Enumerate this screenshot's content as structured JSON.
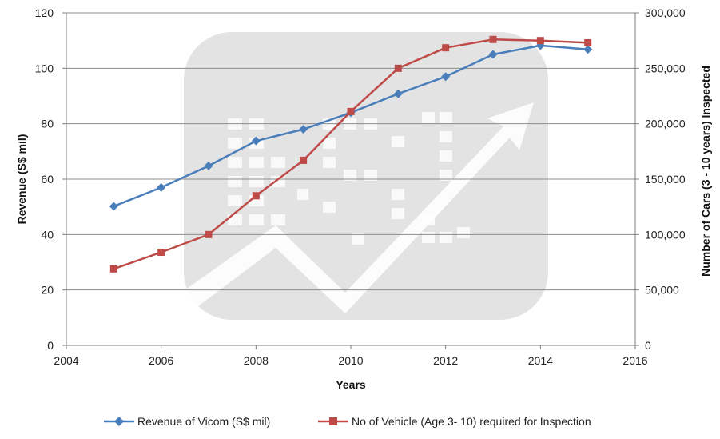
{
  "chart_data": {
    "type": "line",
    "xlabel": "Years",
    "ylabel_left": "Revenue (S$ mil)",
    "ylabel_right": "Number of Cars (3 - 10 years) Inspected",
    "xlim": [
      2004,
      2016
    ],
    "x_ticks": [
      "2004",
      "2006",
      "2008",
      "2010",
      "2012",
      "2014",
      "2016"
    ],
    "ylim_left": [
      0,
      120
    ],
    "y_ticks_left": [
      "0",
      "20",
      "40",
      "60",
      "80",
      "100",
      "120"
    ],
    "ylim_right": [
      0,
      300000
    ],
    "y_ticks_right": [
      "0",
      "50,000",
      "100,000",
      "150,000",
      "200,000",
      "250,000",
      "300,000"
    ],
    "grid": "horizontal",
    "legend_position": "bottom",
    "series": [
      {
        "name": "Revenue of Vicom (S$ mil)",
        "axis": "left",
        "color": "#4a7ebb",
        "marker": "diamond",
        "x": [
          2005,
          2006,
          2007,
          2008,
          2009,
          2010,
          2011,
          2012,
          2013,
          2014,
          2015
        ],
        "values": [
          50.2,
          57.0,
          64.8,
          73.8,
          78.0,
          84.0,
          90.8,
          97.0,
          105.0,
          108.2,
          106.8
        ]
      },
      {
        "name": "No of Vehicle (Age 3- 10) required for Inspection",
        "axis": "right",
        "color": "#be4b48",
        "marker": "square",
        "x": [
          2005,
          2006,
          2007,
          2008,
          2009,
          2010,
          2011,
          2012,
          2013,
          2014,
          2015
        ],
        "values": [
          69000,
          84000,
          100000,
          135000,
          167000,
          211000,
          250000,
          268500,
          276000,
          275000,
          273000
        ]
      }
    ]
  }
}
